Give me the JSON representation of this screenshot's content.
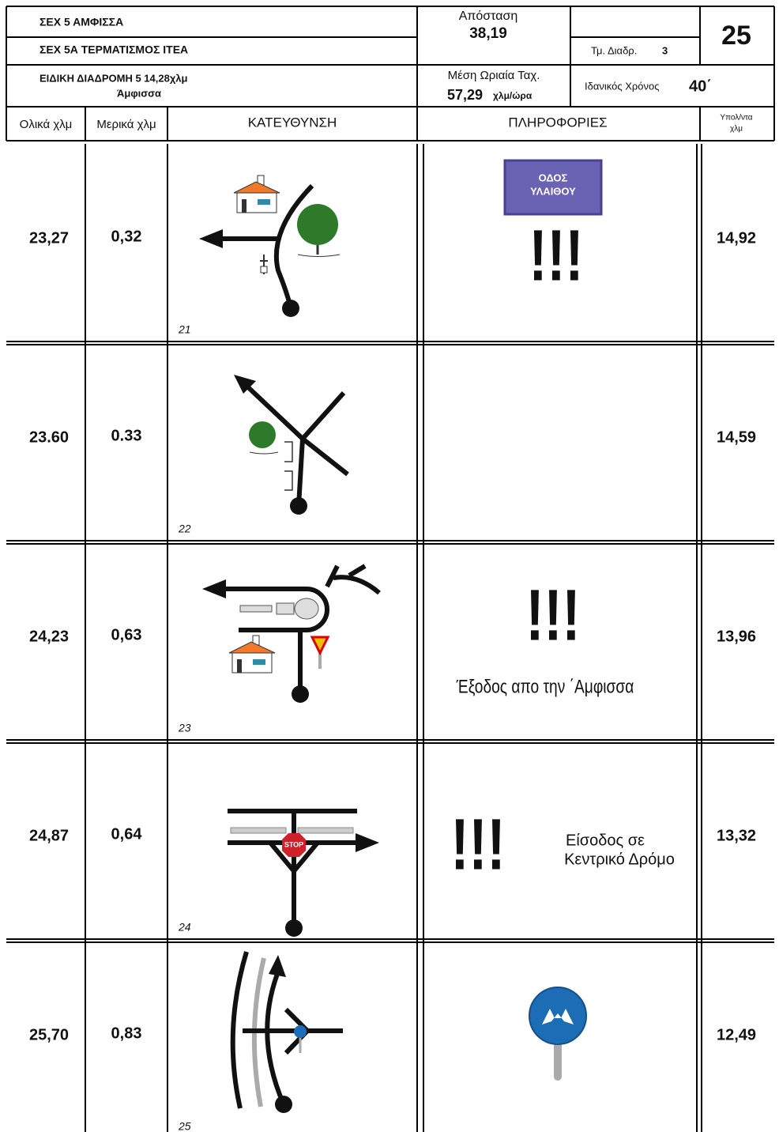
{
  "header": {
    "title1": "ΣΕΧ 5 ΑΜΦΙΣΣΑ",
    "title2": "ΣΕΧ 5Α ΤΕΡΜΑΤΙΣΜΟΣ ΙΤΕΑ",
    "distance_label": "Απόσταση",
    "distance": "38,19",
    "section_label": "Τμ. Διαδρ.",
    "section": "3",
    "page": "25",
    "stage": "ΕΙΔΙΚΗ ΔΙΑΔΡΟΜΗ 5  14,28χλμ",
    "stage_place": "Άμφισσα",
    "speed_label": "Μέση Ωριαία Ταχ.",
    "speed": "57,29",
    "speed_unit": "χλμ/ώρα",
    "time_label": "Ιδανικός Χρόνος",
    "time": "40΄"
  },
  "columns": [
    "Ολικά χλμ",
    "Μερικά χλμ",
    "ΚΑΤΕΥΘΥΝΣΗ",
    "ΠΛΗΡΟΦΟΡΙΕΣ",
    [
      "Υπολ/ντα",
      "χλμ"
    ]
  ],
  "rows": [
    {
      "total": "23,27",
      "partial": "0,32",
      "number": "21",
      "remaining": "14,92",
      "info": {
        "sign": [
          "ΟΔΟΣ",
          "ΥΛΑΙΘΟΥ"
        ],
        "alert": "!!!"
      }
    },
    {
      "total": "23.60",
      "partial": "0.33",
      "number": "22",
      "remaining": "14,59"
    },
    {
      "total": "24,23",
      "partial": "0,63",
      "number": "23",
      "remaining": "13,96",
      "info": {
        "alert": "!!!",
        "note": "Έξοδος απο την ΄Αμφισσα"
      }
    },
    {
      "total": "24,87",
      "partial": "0,64",
      "number": "24",
      "remaining": "13,32",
      "diagram_text": "STOP",
      "info": {
        "alert": "!!!",
        "note": [
          "Είσοδος σε",
          "Κεντρικό Δρόμο"
        ]
      }
    },
    {
      "total": "25,70",
      "partial": "0,83",
      "number": "25",
      "remaining": "12,49"
    }
  ]
}
